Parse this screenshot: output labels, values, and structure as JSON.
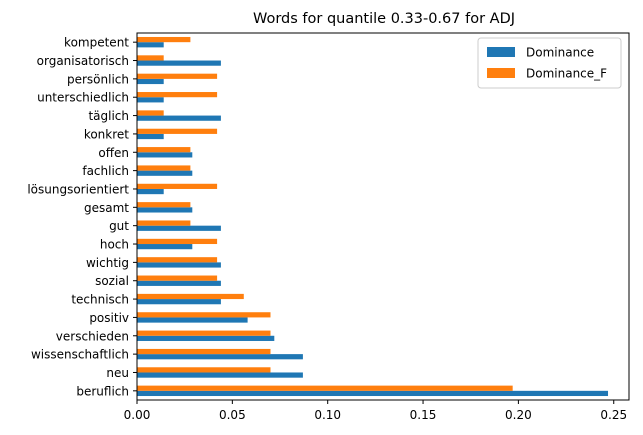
{
  "chart_data": {
    "type": "bar",
    "orientation": "horizontal",
    "title": "Words for quantile 0.33-0.67 for ADJ",
    "xlabel": "",
    "ylabel": "",
    "xlim": [
      0,
      0.258
    ],
    "xticks": [
      0.0,
      0.05,
      0.1,
      0.15,
      0.2,
      0.25
    ],
    "xtick_labels": [
      "0.00",
      "0.05",
      "0.10",
      "0.15",
      "0.20",
      "0.25"
    ],
    "grid": false,
    "legend_position": "top-right",
    "categories": [
      "beruflich",
      "neu",
      "wissenschaftlich",
      "verschieden",
      "positiv",
      "technisch",
      "sozial",
      "wichtig",
      "hoch",
      "gut",
      "gesamt",
      "lösungsorientiert",
      "fachlich",
      "offen",
      "konkret",
      "täglich",
      "unterschiedlich",
      "persönlich",
      "organisatorisch",
      "kompetent"
    ],
    "series": [
      {
        "name": "Dominance",
        "color": "#1f77b4",
        "values": [
          0.247,
          0.087,
          0.087,
          0.072,
          0.058,
          0.044,
          0.044,
          0.044,
          0.029,
          0.044,
          0.029,
          0.014,
          0.029,
          0.029,
          0.014,
          0.044,
          0.014,
          0.014,
          0.044,
          0.014
        ]
      },
      {
        "name": "Dominance_F",
        "color": "#ff7f0e",
        "values": [
          0.197,
          0.07,
          0.07,
          0.07,
          0.07,
          0.056,
          0.042,
          0.042,
          0.042,
          0.028,
          0.028,
          0.042,
          0.028,
          0.028,
          0.042,
          0.014,
          0.042,
          0.042,
          0.014,
          0.028
        ]
      }
    ]
  }
}
